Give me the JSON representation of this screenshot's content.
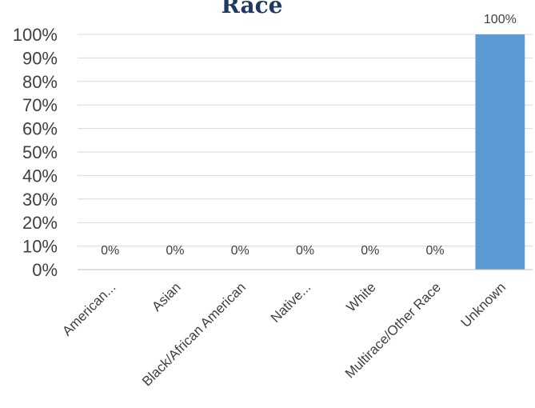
{
  "chart_data": {
    "type": "bar",
    "title": "Race",
    "categories": [
      "American...",
      "Asian",
      "Black/African American",
      "Native...",
      "White",
      "Multirace/Other Race",
      "Unknown"
    ],
    "values": [
      0,
      0,
      0,
      0,
      0,
      0,
      100
    ],
    "data_labels": [
      "0%",
      "0%",
      "0%",
      "0%",
      "0%",
      "0%",
      "100%"
    ],
    "yticks": [
      "0%",
      "10%",
      "20%",
      "30%",
      "40%",
      "50%",
      "60%",
      "70%",
      "80%",
      "90%",
      "100%"
    ],
    "ylim": [
      0,
      100
    ],
    "grid": true,
    "legend": false,
    "bar_color": "#5b9bd5",
    "title_color": "#1f3864"
  }
}
